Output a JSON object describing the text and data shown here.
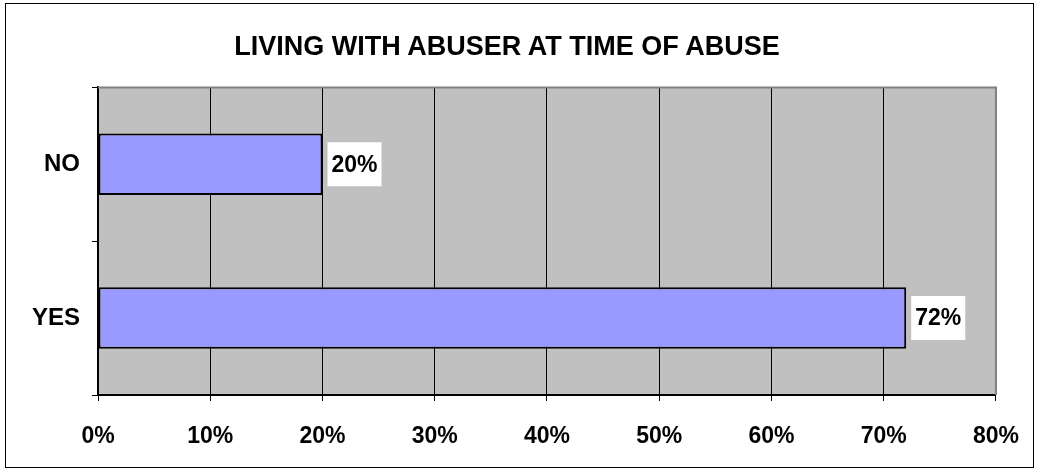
{
  "chart_data": {
    "type": "bar",
    "orientation": "horizontal",
    "title": "LIVING WITH ABUSER AT TIME OF ABUSE",
    "categories": [
      "NO",
      "YES"
    ],
    "values": [
      20,
      72
    ],
    "color": "#9999ff",
    "value_labels": [
      "20%",
      "72%"
    ],
    "xlim": [
      0,
      80
    ],
    "xticks": [
      {
        "value": 0,
        "label": "0%"
      },
      {
        "value": 10,
        "label": "10%"
      },
      {
        "value": 20,
        "label": "20%"
      },
      {
        "value": 30,
        "label": "30%"
      },
      {
        "value": 40,
        "label": "40%"
      },
      {
        "value": 50,
        "label": "50%"
      },
      {
        "value": 60,
        "label": "60%"
      },
      {
        "value": 70,
        "label": "70%"
      },
      {
        "value": 80,
        "label": "80%"
      }
    ],
    "grid": "x",
    "legend": false
  }
}
